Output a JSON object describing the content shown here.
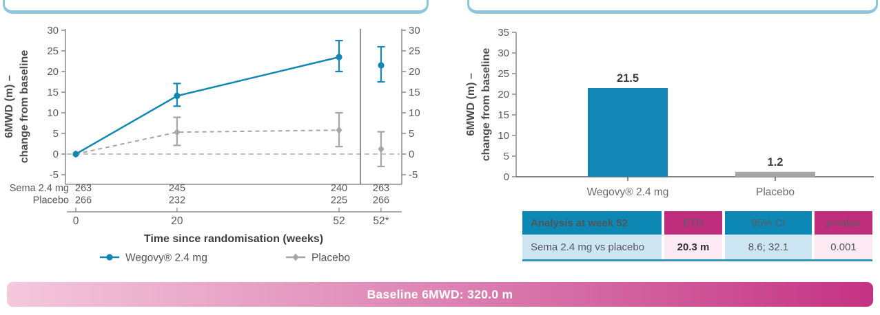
{
  "banner": {
    "text": "Baseline 6MWD: 320.0 m"
  },
  "analysis_table": {
    "headers": [
      "Analysis at week 52",
      "ETD",
      "95% CI",
      "p-value"
    ],
    "row": [
      "Sema 2.4 mg vs placebo",
      "20.3 m",
      "8.6; 32.1",
      "0.001"
    ]
  },
  "chart_data": [
    {
      "type": "line",
      "panel": "left",
      "ylabel": "6MWD (m) – change from baseline",
      "ylabel_lines": [
        "6MWD (m) –",
        "change from baseline"
      ],
      "xlabel": "Time since randomisation (weeks)",
      "ylim": [
        -5,
        30
      ],
      "yticks": [
        30,
        25,
        20,
        15,
        10,
        5,
        0,
        -5
      ],
      "x_weeks": [
        0,
        20,
        52
      ],
      "x_tick_labels": [
        "0",
        "20",
        "52",
        "52*"
      ],
      "zero_reference_line": true,
      "series": [
        {
          "name": "Wegovy® 2.4 mg",
          "color": "#1287b5",
          "marker": "circle",
          "dashed": false,
          "values": [
            0,
            14.1,
            23.5
          ],
          "ci_low": [
            null,
            11.6,
            20.0
          ],
          "ci_high": [
            null,
            17.1,
            27.5
          ],
          "week52_star": {
            "value": 21.5,
            "ci_low": 17.5,
            "ci_high": 26.0
          }
        },
        {
          "name": "Placebo",
          "color": "#a6a6a6",
          "marker": "diamond",
          "dashed": true,
          "values": [
            0,
            5.3,
            5.8
          ],
          "ci_low": [
            null,
            2.1,
            1.8
          ],
          "ci_high": [
            null,
            8.9,
            10.0
          ],
          "week52_star": {
            "value": 1.2,
            "ci_low": -3.0,
            "ci_high": 5.4
          }
        }
      ],
      "n_counts": {
        "rows": [
          {
            "label": "Sema 2.4 mg",
            "values": [
              "263",
              "245",
              "240",
              "263"
            ]
          },
          {
            "label": "Placebo",
            "values": [
              "266",
              "232",
              "225",
              "266"
            ]
          }
        ]
      }
    },
    {
      "type": "bar",
      "panel": "right",
      "ylabel": "6MWD (m) – change from baseline",
      "ylabel_lines": [
        "6MWD (m) –",
        "change from baseline"
      ],
      "categories": [
        "Wegovy® 2.4 mg",
        "Placebo"
      ],
      "values": [
        21.5,
        1.2
      ],
      "value_labels": [
        "21.5",
        "1.2"
      ],
      "bar_colors": [
        "#1287b5",
        "#a6a6a6"
      ],
      "ylim": [
        0,
        35
      ],
      "yticks": [
        35,
        30,
        25,
        20,
        15,
        10,
        5,
        0
      ]
    }
  ],
  "colors": {
    "wegovy_teal": "#1287b5",
    "placebo_grey": "#a6a6a6",
    "header_teal": "#0d87b3",
    "header_magenta": "#c02d7c",
    "cell_light_blue": "#cde5f2",
    "cell_light_pink": "#fce9f2",
    "table_bottom_border": "#2d96bd",
    "panel_border_blue": "#8dc6dc",
    "banner_gradient_left": "#f4c8dc",
    "banner_gradient_right": "#c43383"
  }
}
